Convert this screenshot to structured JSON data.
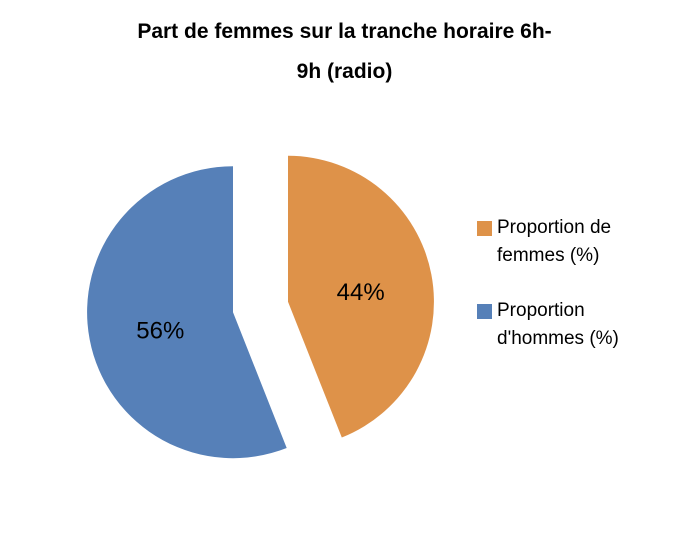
{
  "chart_data": {
    "type": "pie",
    "title": "Part de femmes sur la tranche horaire 6h-9h (radio)",
    "series": [
      {
        "key": "femmes",
        "name": "Proportion de femmes (%)",
        "value": 44,
        "data_label": "44%",
        "color": "#DE9249"
      },
      {
        "key": "hommes",
        "name": "Proportion d'hommes (%)",
        "value": 56,
        "data_label": "56%",
        "color": "#5680B8"
      }
    ],
    "start_angle": 0,
    "direction": "clockwise",
    "exploded": true,
    "legend_position": "right",
    "background_color": "#FFFFFF",
    "title_color": "#000000",
    "data_label_color": "#000000"
  },
  "title": {
    "lines": [
      "Part de femmes sur la tranche horaire 6h-",
      "9h (radio)"
    ]
  }
}
